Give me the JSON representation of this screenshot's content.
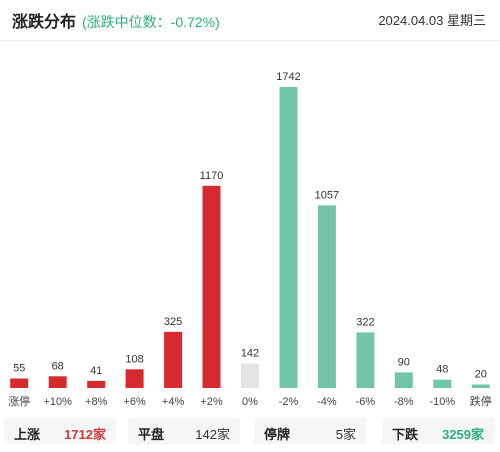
{
  "header": {
    "title": "涨跌分布",
    "median": "(涨跌中位数：-0.72%)",
    "date": "2024.04.03 星期三"
  },
  "colors": {
    "up": "#d62a2f",
    "flat": "#e4e4e4",
    "down": "#72c4a7"
  },
  "chart_data": {
    "type": "bar",
    "categories": [
      "涨停",
      "+10%",
      "+8%",
      "+6%",
      "+4%",
      "+2%",
      "0%",
      "-2%",
      "-4%",
      "-6%",
      "-8%",
      "-10%",
      "跌停"
    ],
    "values": [
      55,
      68,
      41,
      108,
      325,
      1170,
      142,
      1742,
      1057,
      322,
      90,
      48,
      20
    ],
    "groups": [
      "up",
      "up",
      "up",
      "up",
      "up",
      "up",
      "flat",
      "down",
      "down",
      "down",
      "down",
      "down",
      "down"
    ],
    "ylim": [
      0,
      1742
    ]
  },
  "summary": [
    {
      "label": "上涨",
      "value": "1712家",
      "tone": "red"
    },
    {
      "label": "平盘",
      "value": "142家",
      "tone": "plain"
    },
    {
      "label": "停牌",
      "value": "5家",
      "tone": "plain"
    },
    {
      "label": "下跌",
      "value": "3259家",
      "tone": "green"
    }
  ]
}
